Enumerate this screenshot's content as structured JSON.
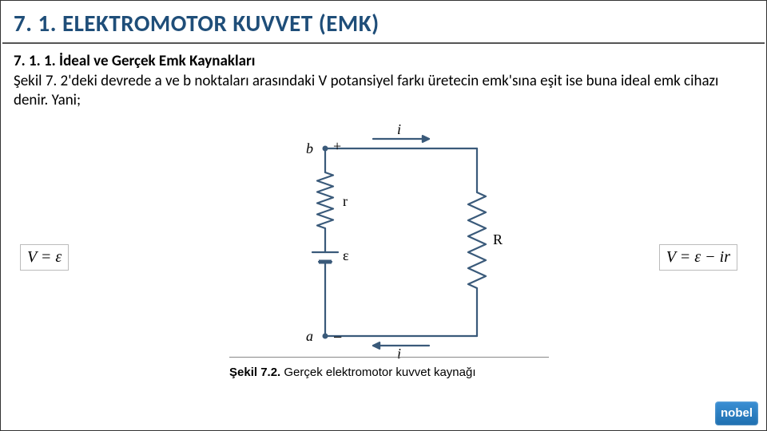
{
  "title": "7. 1. ELEKTROMOTOR KUVVET (EMK)",
  "subtitle": "7. 1. 1. İdeal ve Gerçek Emk Kaynakları",
  "body": "Şekil 7. 2'deki devrede a ve b noktaları arasındaki V potansiyel farkı üretecin emk'sına eşit ise buna ideal emk cihazı denir. Yani;",
  "equations": {
    "left": "V = ε",
    "right": "V = ε − ir"
  },
  "circuit": {
    "labels": {
      "b": "b",
      "a": "a",
      "plus": "+",
      "minus": "−",
      "r": "r",
      "eps": "ε",
      "R": "R",
      "i_top": "i",
      "i_bot": "i"
    },
    "color": "#3a5a7a",
    "wire_width": 2.2
  },
  "caption": {
    "bold": "Şekil 7.2.",
    "rest": " Gerçek elektromotor kuvvet kaynağı"
  },
  "logo": "nobel"
}
